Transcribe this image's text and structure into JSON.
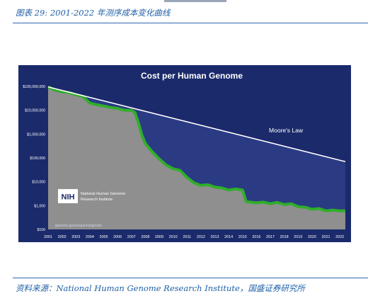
{
  "caption": {
    "text": "图表 29:  2001-2022 年测序成本变化曲线"
  },
  "source": {
    "text": "资料来源：National Human Genome Research Institute，国盛证券研究所"
  },
  "logo": {
    "badge": "NIH",
    "line1": "National Human Genome",
    "line2": "Research Institute"
  },
  "url": "genome.gov/sequencingcosts",
  "colors": {
    "background": "#1b2a6b",
    "cost_fill": "#8f8f8f",
    "cost_line": "#2fae2a",
    "moore_area": "#2a3b84",
    "moore_line": "#ffffff",
    "title": "#ffffff"
  },
  "chart_data": {
    "type": "line",
    "title": "Cost per Human Genome",
    "y_scale": "log",
    "ylim": [
      100,
      100000000
    ],
    "y_ticks": [
      {
        "value": 100000000,
        "label": "$100,000,000"
      },
      {
        "value": 10000000,
        "label": "$10,000,000"
      },
      {
        "value": 1000000,
        "label": "$1,000,000"
      },
      {
        "value": 100000,
        "label": "$100,000"
      },
      {
        "value": 10000,
        "label": "$10,000"
      },
      {
        "value": 1000,
        "label": "$1,000"
      },
      {
        "value": 100,
        "label": "$100"
      }
    ],
    "x_ticks": [
      "2001",
      "2002",
      "2003",
      "2004",
      "2005",
      "2006",
      "2007",
      "2008",
      "2009",
      "2010",
      "2011",
      "2012",
      "2013",
      "2014",
      "2015",
      "2016",
      "2017",
      "2018",
      "2019",
      "2020",
      "2021",
      "2022"
    ],
    "xlim": [
      2001,
      2022.4
    ],
    "series": [
      {
        "name": "",
        "points": [
          [
            2001.0,
            95000000
          ],
          [
            2001.5,
            70000000
          ],
          [
            2002.0,
            60000000
          ],
          [
            2002.5,
            55000000
          ],
          [
            2003.0,
            45000000
          ],
          [
            2003.5,
            38000000
          ],
          [
            2004.0,
            20000000
          ],
          [
            2004.5,
            17000000
          ],
          [
            2005.0,
            15000000
          ],
          [
            2005.5,
            13000000
          ],
          [
            2006.0,
            12000000
          ],
          [
            2006.5,
            10000000
          ],
          [
            2007.0,
            10000000
          ],
          [
            2007.25,
            8000000
          ],
          [
            2007.5,
            3000000
          ],
          [
            2007.75,
            900000
          ],
          [
            2008.0,
            400000
          ],
          [
            2008.5,
            180000
          ],
          [
            2009.0,
            90000
          ],
          [
            2009.5,
            50000
          ],
          [
            2010.0,
            35000
          ],
          [
            2010.5,
            30000
          ],
          [
            2011.0,
            15000
          ],
          [
            2011.5,
            9000
          ],
          [
            2012.0,
            7000
          ],
          [
            2012.5,
            7500
          ],
          [
            2013.0,
            6000
          ],
          [
            2013.5,
            5500
          ],
          [
            2014.0,
            4500
          ],
          [
            2014.5,
            5000
          ],
          [
            2015.0,
            4500
          ],
          [
            2015.25,
            1500
          ],
          [
            2015.5,
            1400
          ],
          [
            2016.0,
            1300
          ],
          [
            2016.5,
            1400
          ],
          [
            2017.0,
            1200
          ],
          [
            2017.5,
            1350
          ],
          [
            2018.0,
            1100
          ],
          [
            2018.5,
            1200
          ],
          [
            2019.0,
            900
          ],
          [
            2019.5,
            850
          ],
          [
            2020.0,
            700
          ],
          [
            2020.5,
            750
          ],
          [
            2021.0,
            600
          ],
          [
            2021.5,
            650
          ],
          [
            2022.0,
            600
          ],
          [
            2022.4,
            600
          ]
        ]
      },
      {
        "name": "Moore's Law",
        "points": [
          [
            2001.0,
            95000000
          ],
          [
            2022.4,
            70000
          ]
        ]
      }
    ]
  }
}
